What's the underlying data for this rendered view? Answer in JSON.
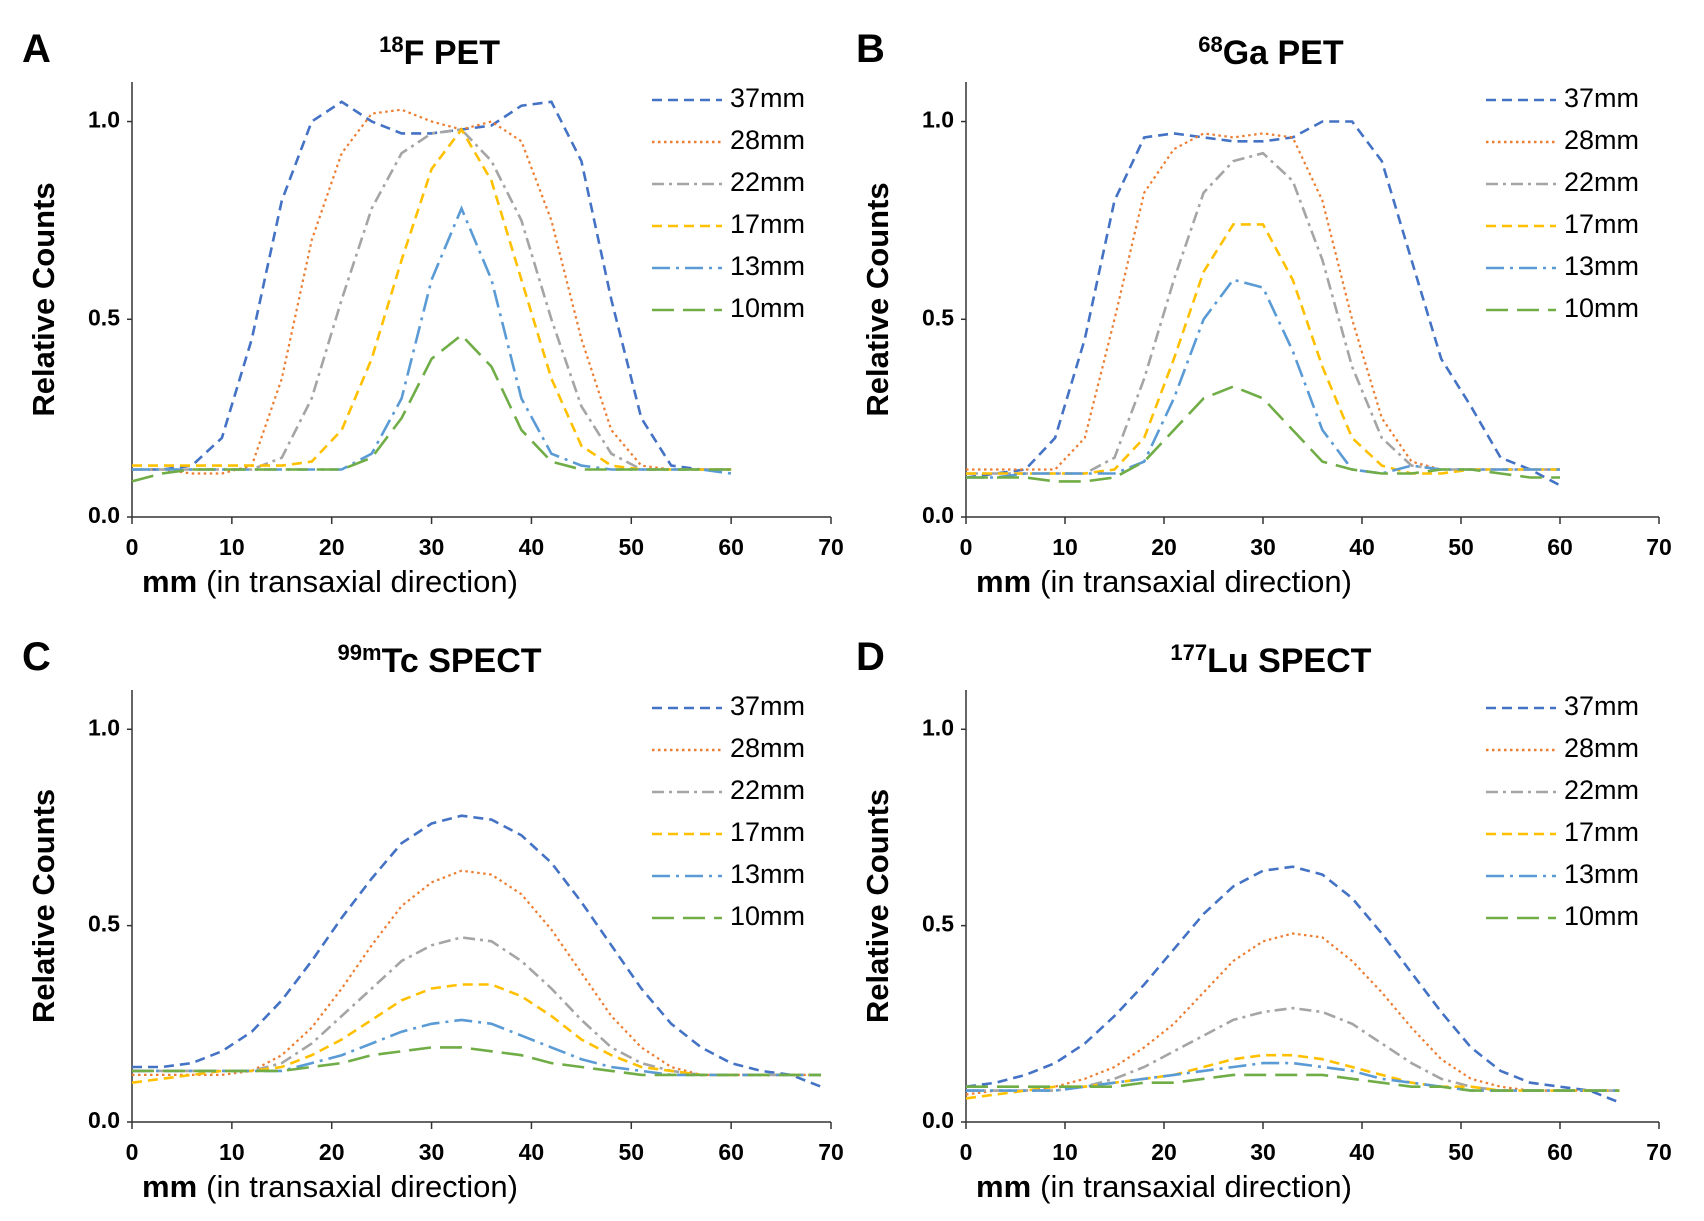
{
  "chart_data": [
    {
      "type": "line",
      "panel_label": "A",
      "title_superscript": "18",
      "title": "F PET",
      "ylabel": "Relative Counts",
      "xlabel_bold": "mm",
      "xlabel": "(in transaxial direction)",
      "xlim": [
        0,
        70
      ],
      "ylim": [
        0,
        1.1
      ],
      "xticks": [
        0,
        10,
        20,
        30,
        40,
        50,
        60,
        70
      ],
      "yticks": [
        {
          "value": 0,
          "label": "0.0"
        },
        0.5,
        {
          "value": 1,
          "label": "1.0"
        }
      ],
      "x": [
        0,
        3,
        6,
        9,
        12,
        15,
        18,
        21,
        24,
        27,
        30,
        33,
        36,
        39,
        42,
        45,
        48,
        51,
        54,
        57,
        60
      ],
      "series": [
        {
          "name": "37mm",
          "color": "#4472c4",
          "dash": "dash",
          "values": [
            0.12,
            0.12,
            0.13,
            0.2,
            0.45,
            0.8,
            1.0,
            1.05,
            1.0,
            0.97,
            0.97,
            0.98,
            0.99,
            1.04,
            1.05,
            0.9,
            0.55,
            0.25,
            0.13,
            0.12,
            0.12
          ]
        },
        {
          "name": "28mm",
          "color": "#ed7d31",
          "dash": "dot",
          "values": [
            0.12,
            0.12,
            0.11,
            0.11,
            0.13,
            0.35,
            0.7,
            0.92,
            1.02,
            1.03,
            1.0,
            0.98,
            1.0,
            0.95,
            0.75,
            0.45,
            0.22,
            0.13,
            0.12,
            0.12,
            0.12
          ]
        },
        {
          "name": "22mm",
          "color": "#a5a5a5",
          "dash": "dashdot",
          "values": [
            0.12,
            0.12,
            0.12,
            0.12,
            0.12,
            0.15,
            0.3,
            0.55,
            0.78,
            0.92,
            0.97,
            0.98,
            0.9,
            0.75,
            0.5,
            0.28,
            0.16,
            0.12,
            0.12,
            0.12,
            0.12
          ]
        },
        {
          "name": "17mm",
          "color": "#ffc000",
          "dash": "dash",
          "values": [
            0.13,
            0.13,
            0.13,
            0.13,
            0.13,
            0.13,
            0.14,
            0.22,
            0.4,
            0.65,
            0.88,
            0.98,
            0.85,
            0.6,
            0.35,
            0.18,
            0.13,
            0.12,
            0.12,
            0.12,
            0.12
          ]
        },
        {
          "name": "13mm",
          "color": "#5b9bd5",
          "dash": "longdashdot",
          "values": [
            0.12,
            0.12,
            0.12,
            0.12,
            0.12,
            0.12,
            0.12,
            0.12,
            0.16,
            0.3,
            0.6,
            0.78,
            0.6,
            0.3,
            0.16,
            0.13,
            0.12,
            0.12,
            0.12,
            0.12,
            0.11
          ]
        },
        {
          "name": "10mm",
          "color": "#70ad47",
          "dash": "longdash",
          "values": [
            0.09,
            0.11,
            0.12,
            0.12,
            0.12,
            0.12,
            0.12,
            0.12,
            0.15,
            0.25,
            0.4,
            0.46,
            0.38,
            0.22,
            0.14,
            0.12,
            0.12,
            0.12,
            0.12,
            0.12,
            0.12
          ]
        }
      ]
    },
    {
      "type": "line",
      "panel_label": "B",
      "title_superscript": "68",
      "title": "Ga PET",
      "ylabel": "Relative Counts",
      "xlabel_bold": "mm",
      "xlabel": "(in transaxial direction)",
      "xlim": [
        0,
        70
      ],
      "ylim": [
        0,
        1.1
      ],
      "xticks": [
        0,
        10,
        20,
        30,
        40,
        50,
        60,
        70
      ],
      "yticks": [
        {
          "value": 0,
          "label": "0.0"
        },
        0.5,
        {
          "value": 1,
          "label": "1.0"
        }
      ],
      "x": [
        0,
        3,
        6,
        9,
        12,
        15,
        18,
        21,
        24,
        27,
        30,
        33,
        36,
        39,
        42,
        45,
        48,
        51,
        54,
        57,
        60
      ],
      "series": [
        {
          "name": "37mm",
          "color": "#4472c4",
          "dash": "dash",
          "values": [
            0.1,
            0.11,
            0.12,
            0.2,
            0.45,
            0.8,
            0.96,
            0.97,
            0.96,
            0.95,
            0.95,
            0.96,
            1.0,
            1.0,
            0.9,
            0.65,
            0.4,
            0.28,
            0.15,
            0.12,
            0.08
          ]
        },
        {
          "name": "28mm",
          "color": "#ed7d31",
          "dash": "dot",
          "values": [
            0.12,
            0.12,
            0.12,
            0.12,
            0.2,
            0.5,
            0.82,
            0.93,
            0.97,
            0.96,
            0.97,
            0.96,
            0.8,
            0.5,
            0.25,
            0.14,
            0.12,
            0.12,
            0.12,
            0.12,
            0.12
          ]
        },
        {
          "name": "22mm",
          "color": "#a5a5a5",
          "dash": "dashdot",
          "values": [
            0.11,
            0.11,
            0.11,
            0.11,
            0.11,
            0.15,
            0.35,
            0.6,
            0.82,
            0.9,
            0.92,
            0.85,
            0.65,
            0.38,
            0.2,
            0.13,
            0.12,
            0.12,
            0.12,
            0.12,
            0.12
          ]
        },
        {
          "name": "17mm",
          "color": "#ffc000",
          "dash": "dash",
          "values": [
            0.11,
            0.11,
            0.11,
            0.11,
            0.11,
            0.12,
            0.2,
            0.4,
            0.62,
            0.74,
            0.74,
            0.6,
            0.38,
            0.2,
            0.13,
            0.11,
            0.11,
            0.12,
            0.12,
            0.12,
            0.12
          ]
        },
        {
          "name": "13mm",
          "color": "#5b9bd5",
          "dash": "longdashdot",
          "values": [
            0.1,
            0.1,
            0.11,
            0.11,
            0.11,
            0.11,
            0.14,
            0.3,
            0.5,
            0.6,
            0.58,
            0.42,
            0.22,
            0.12,
            0.11,
            0.13,
            0.12,
            0.12,
            0.12,
            0.12,
            0.12
          ]
        },
        {
          "name": "10mm",
          "color": "#70ad47",
          "dash": "longdash",
          "values": [
            0.1,
            0.1,
            0.1,
            0.09,
            0.09,
            0.1,
            0.14,
            0.22,
            0.3,
            0.33,
            0.3,
            0.22,
            0.14,
            0.12,
            0.11,
            0.11,
            0.12,
            0.12,
            0.11,
            0.1,
            0.1
          ]
        }
      ]
    },
    {
      "type": "line",
      "panel_label": "C",
      "title_superscript": "99m",
      "title": "Tc SPECT",
      "ylabel": "Relative Counts",
      "xlabel_bold": "mm",
      "xlabel": "(in transaxial direction)",
      "xlim": [
        0,
        70
      ],
      "ylim": [
        0,
        1.1
      ],
      "xticks": [
        0,
        10,
        20,
        30,
        40,
        50,
        60,
        70
      ],
      "yticks": [
        {
          "value": 0,
          "label": "0.0"
        },
        0.5,
        {
          "value": 1,
          "label": "1.0"
        }
      ],
      "x": [
        0,
        3,
        6,
        9,
        12,
        15,
        18,
        21,
        24,
        27,
        30,
        33,
        36,
        39,
        42,
        45,
        48,
        51,
        54,
        57,
        60,
        63,
        66,
        69
      ],
      "series": [
        {
          "name": "37mm",
          "color": "#4472c4",
          "dash": "dash",
          "values": [
            0.14,
            0.14,
            0.15,
            0.18,
            0.23,
            0.31,
            0.41,
            0.52,
            0.62,
            0.71,
            0.76,
            0.78,
            0.77,
            0.73,
            0.66,
            0.56,
            0.45,
            0.34,
            0.25,
            0.19,
            0.15,
            0.13,
            0.12,
            0.09
          ]
        },
        {
          "name": "28mm",
          "color": "#ed7d31",
          "dash": "dot",
          "values": [
            0.12,
            0.12,
            0.12,
            0.12,
            0.13,
            0.17,
            0.24,
            0.34,
            0.45,
            0.55,
            0.61,
            0.64,
            0.63,
            0.58,
            0.49,
            0.38,
            0.27,
            0.19,
            0.14,
            0.12,
            0.12,
            0.12,
            0.12,
            0.12
          ]
        },
        {
          "name": "22mm",
          "color": "#a5a5a5",
          "dash": "dashdot",
          "values": [
            0.13,
            0.13,
            0.13,
            0.13,
            0.13,
            0.15,
            0.2,
            0.27,
            0.34,
            0.41,
            0.45,
            0.47,
            0.46,
            0.41,
            0.34,
            0.26,
            0.19,
            0.15,
            0.13,
            0.12,
            0.12,
            0.12,
            0.12,
            0.12
          ]
        },
        {
          "name": "17mm",
          "color": "#ffc000",
          "dash": "dash",
          "values": [
            0.1,
            0.11,
            0.12,
            0.13,
            0.13,
            0.14,
            0.17,
            0.21,
            0.26,
            0.31,
            0.34,
            0.35,
            0.35,
            0.32,
            0.27,
            0.21,
            0.17,
            0.14,
            0.13,
            0.12,
            0.12,
            0.12,
            0.12,
            0.12
          ]
        },
        {
          "name": "13mm",
          "color": "#5b9bd5",
          "dash": "longdashdot",
          "values": [
            0.13,
            0.13,
            0.13,
            0.13,
            0.13,
            0.13,
            0.15,
            0.17,
            0.2,
            0.23,
            0.25,
            0.26,
            0.25,
            0.22,
            0.19,
            0.16,
            0.14,
            0.13,
            0.12,
            0.12,
            0.12,
            0.12,
            0.12,
            0.12
          ]
        },
        {
          "name": "10mm",
          "color": "#70ad47",
          "dash": "longdash",
          "values": [
            0.13,
            0.13,
            0.13,
            0.13,
            0.13,
            0.13,
            0.14,
            0.15,
            0.17,
            0.18,
            0.19,
            0.19,
            0.18,
            0.17,
            0.15,
            0.14,
            0.13,
            0.12,
            0.12,
            0.12,
            0.12,
            0.12,
            0.12,
            0.12
          ]
        }
      ]
    },
    {
      "type": "line",
      "panel_label": "D",
      "title_superscript": "177",
      "title": "Lu SPECT",
      "ylabel": "Relative Counts",
      "xlabel_bold": "mm",
      "xlabel": "(in transaxial direction)",
      "xlim": [
        0,
        70
      ],
      "ylim": [
        0,
        1.1
      ],
      "xticks": [
        0,
        10,
        20,
        30,
        40,
        50,
        60,
        70
      ],
      "yticks": [
        {
          "value": 0,
          "label": "0.0"
        },
        0.5,
        {
          "value": 1,
          "label": "1.0"
        }
      ],
      "x": [
        0,
        3,
        6,
        9,
        12,
        15,
        18,
        21,
        24,
        27,
        30,
        33,
        36,
        39,
        42,
        45,
        48,
        51,
        54,
        57,
        60,
        63,
        66
      ],
      "series": [
        {
          "name": "37mm",
          "color": "#4472c4",
          "dash": "dash",
          "values": [
            0.09,
            0.1,
            0.12,
            0.15,
            0.2,
            0.27,
            0.35,
            0.44,
            0.53,
            0.6,
            0.64,
            0.65,
            0.63,
            0.57,
            0.48,
            0.38,
            0.28,
            0.19,
            0.13,
            0.1,
            0.09,
            0.08,
            0.05
          ]
        },
        {
          "name": "28mm",
          "color": "#ed7d31",
          "dash": "dot",
          "values": [
            0.07,
            0.08,
            0.08,
            0.09,
            0.11,
            0.14,
            0.19,
            0.25,
            0.33,
            0.41,
            0.46,
            0.48,
            0.47,
            0.41,
            0.33,
            0.24,
            0.16,
            0.11,
            0.09,
            0.08,
            0.08,
            0.08,
            0.08
          ]
        },
        {
          "name": "22mm",
          "color": "#a5a5a5",
          "dash": "dashdot",
          "values": [
            0.08,
            0.08,
            0.08,
            0.08,
            0.09,
            0.11,
            0.14,
            0.18,
            0.22,
            0.26,
            0.28,
            0.29,
            0.28,
            0.25,
            0.2,
            0.15,
            0.11,
            0.09,
            0.08,
            0.08,
            0.08,
            0.08,
            0.08
          ]
        },
        {
          "name": "17mm",
          "color": "#ffc000",
          "dash": "dash",
          "values": [
            0.06,
            0.07,
            0.08,
            0.09,
            0.09,
            0.1,
            0.11,
            0.12,
            0.14,
            0.16,
            0.17,
            0.17,
            0.16,
            0.14,
            0.12,
            0.1,
            0.09,
            0.09,
            0.08,
            0.08,
            0.08,
            0.08,
            0.08
          ]
        },
        {
          "name": "13mm",
          "color": "#5b9bd5",
          "dash": "longdashdot",
          "values": [
            0.08,
            0.08,
            0.08,
            0.08,
            0.09,
            0.1,
            0.11,
            0.12,
            0.13,
            0.14,
            0.15,
            0.15,
            0.14,
            0.13,
            0.11,
            0.1,
            0.09,
            0.08,
            0.08,
            0.08,
            0.08,
            0.08,
            0.08
          ]
        },
        {
          "name": "10mm",
          "color": "#70ad47",
          "dash": "longdash",
          "values": [
            0.09,
            0.09,
            0.09,
            0.09,
            0.09,
            0.09,
            0.1,
            0.1,
            0.11,
            0.12,
            0.12,
            0.12,
            0.12,
            0.11,
            0.1,
            0.09,
            0.09,
            0.08,
            0.08,
            0.08,
            0.08,
            0.08,
            0.08
          ]
        }
      ]
    }
  ]
}
